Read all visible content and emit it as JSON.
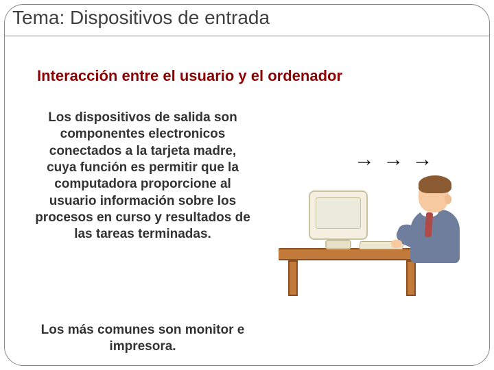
{
  "title": "Tema: Dispositivos de entrada",
  "subtitle": "Interacción entre el usuario y el ordenador",
  "body": "Los dispositivos de salida son componentes electronicos conectados a la tarjeta madre, cuya función es permitir que la computadora proporcione al usuario información sobre los procesos en curso y resultados de las tareas terminadas.",
  "footer": "Los más comunes son monitor e impresora.",
  "arrows": "→ → →",
  "colors": {
    "title": "#3f3f3f",
    "subtitle": "#8b0000",
    "body": "#333333",
    "frame_border": "#888888",
    "background": "#ffffff",
    "desk": "#c17a3a",
    "desk_border": "#8a4e20",
    "monitor": "#f4efe0",
    "monitor_border": "#c9c2a0",
    "skin": "#f6c9a0",
    "hair": "#8a5a32",
    "suit": "#6f7e9c",
    "tie": "#b04a46"
  },
  "typography": {
    "title_fontsize": 28,
    "subtitle_fontsize": 22,
    "body_fontsize": 19,
    "font_family": "Verdana"
  },
  "layout": {
    "slide_width": 720,
    "slide_height": 540,
    "frame_radius": 28,
    "text_column_width": 320,
    "illustration_width": 290,
    "illustration_height": 260
  },
  "illustration": {
    "type": "infographic",
    "description": "cartoon man in grey-blue suit with red tie and brown hair sitting at a brown wooden desk typing on a keyboard in front of a beige CRT monitor; three right-pointing arrows above the monitor",
    "arrow_count": 3
  }
}
